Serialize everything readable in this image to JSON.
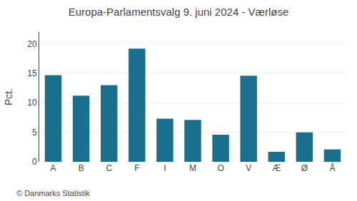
{
  "chart_data": {
    "type": "bar",
    "title": "Europa-Parlamentsvalg 9. juni 2024 - Værløse",
    "ylabel": "Pct.",
    "annotations": [
      "© Danmarks Statistik"
    ],
    "categories": [
      "A",
      "B",
      "C",
      "F",
      "I",
      "M",
      "O",
      "V",
      "Æ",
      "Ø",
      "Å"
    ],
    "values": [
      14.7,
      11.2,
      13.0,
      19.2,
      7.3,
      7.1,
      4.6,
      14.6,
      1.7,
      5.0,
      2.1
    ],
    "color": "#1a6e8e",
    "ylim": [
      0,
      22
    ],
    "yticks": [
      0,
      5,
      10,
      15,
      20
    ],
    "grid": true
  }
}
